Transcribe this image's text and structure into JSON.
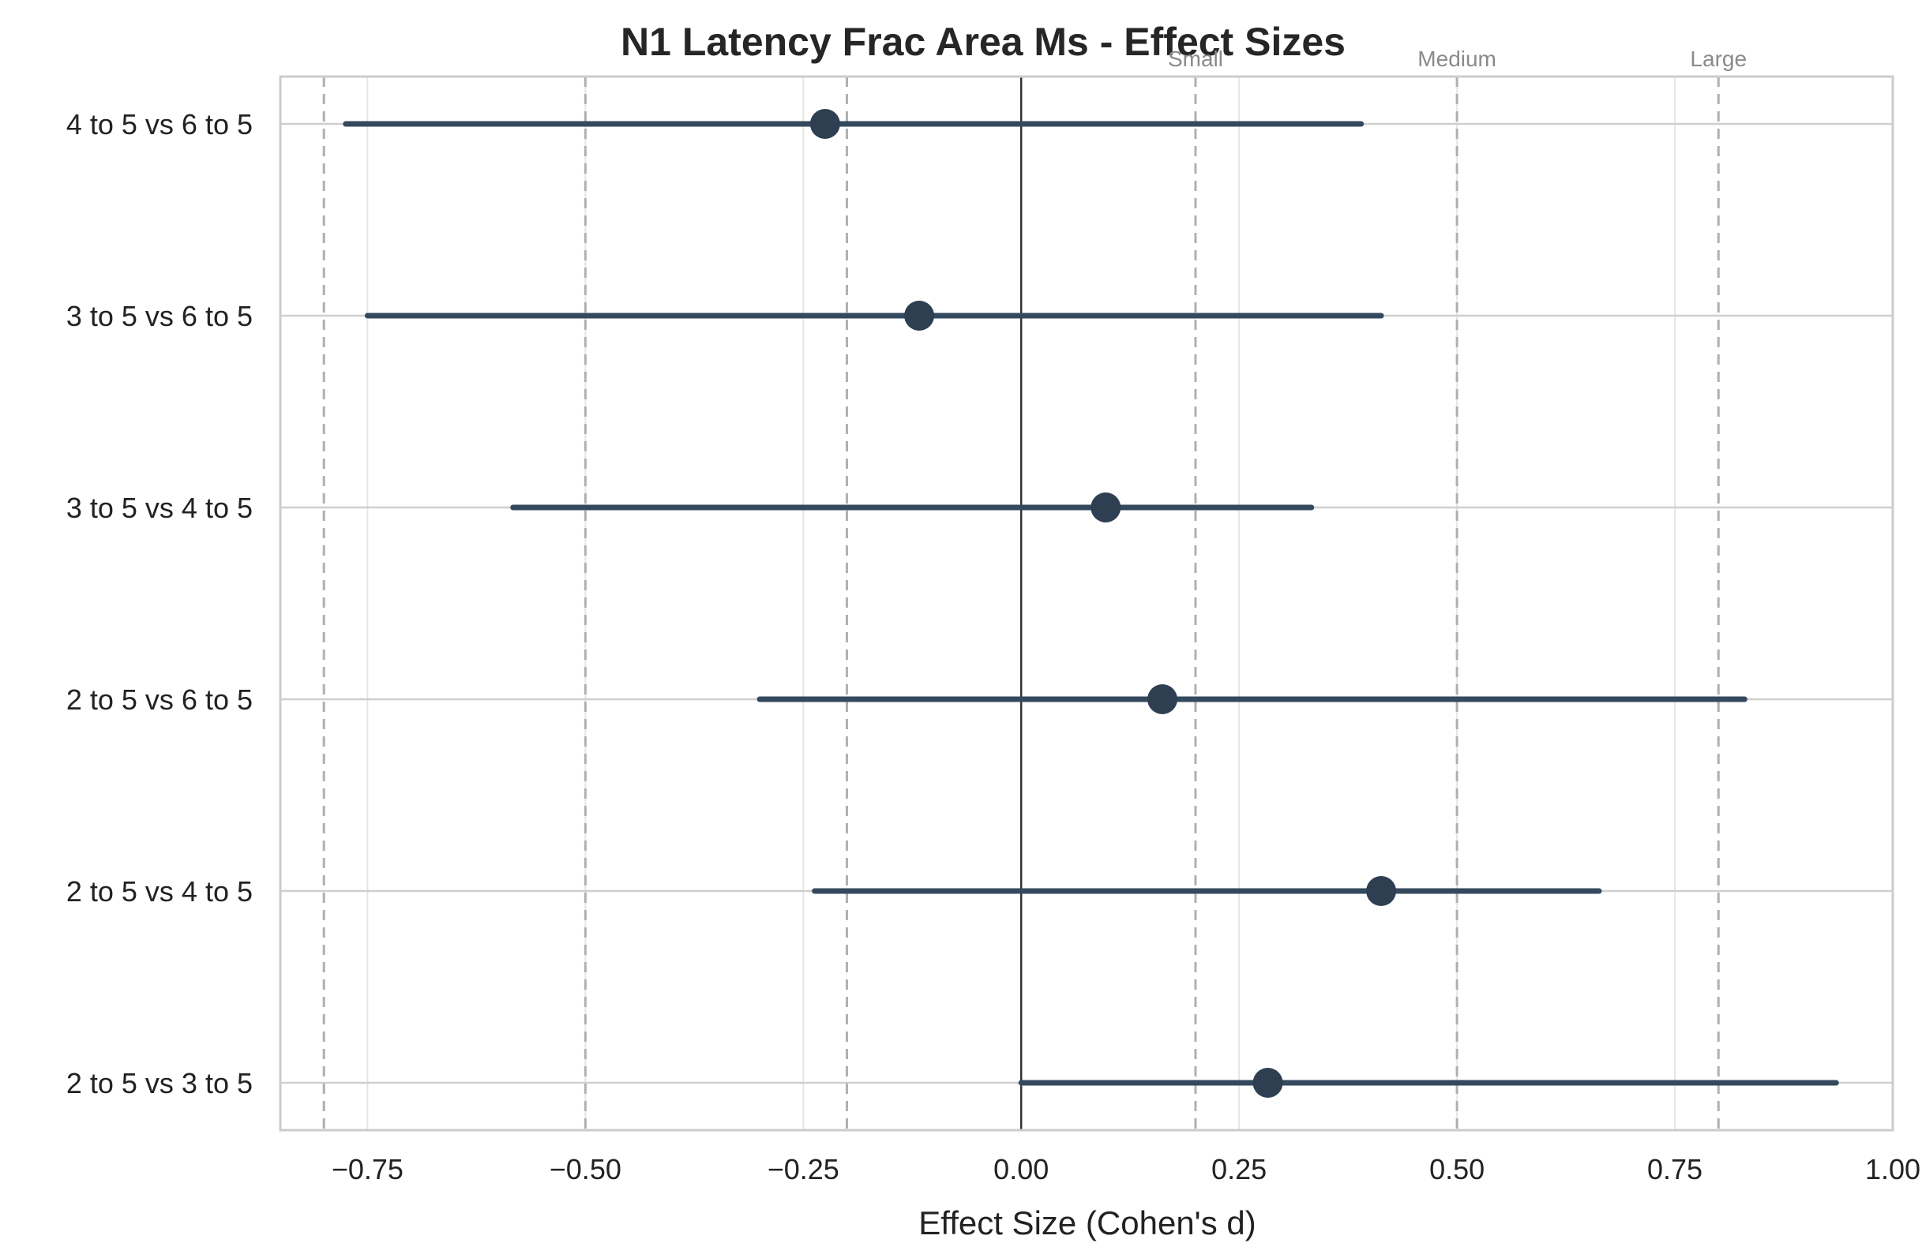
{
  "chart_data": {
    "type": "forest",
    "title": "N1 Latency Frac Area Ms - Effect Sizes",
    "xlabel": "Effect Size (Cohen's d)",
    "ylabel": "",
    "xlim": [
      -0.85,
      1.0
    ],
    "xticks": [
      -0.75,
      -0.5,
      -0.25,
      0.0,
      0.25,
      0.5,
      0.75,
      1.0
    ],
    "xtick_labels": [
      "−0.75",
      "−0.50",
      "−0.25",
      "0.00",
      "0.25",
      "0.50",
      "0.75",
      "1.00"
    ],
    "grid": true,
    "zero_line": 0.0,
    "reference_lines": [
      {
        "label": "Small",
        "values": [
          -0.2,
          0.2
        ]
      },
      {
        "label": "Medium",
        "values": [
          -0.5,
          0.5
        ]
      },
      {
        "label": "Large",
        "values": [
          -0.8,
          0.8
        ]
      }
    ],
    "comparisons": [
      {
        "label": "4 to 5 vs 6 to 5",
        "d": -0.225,
        "ci_low": -0.775,
        "ci_high": 0.39
      },
      {
        "label": "3 to 5 vs 6 to 5",
        "d": -0.117,
        "ci_low": -0.75,
        "ci_high": 0.413
      },
      {
        "label": "3 to 5 vs 4 to 5",
        "d": 0.097,
        "ci_low": -0.583,
        "ci_high": 0.333
      },
      {
        "label": "2 to 5 vs 6 to 5",
        "d": 0.162,
        "ci_low": -0.3,
        "ci_high": 0.83
      },
      {
        "label": "2 to 5 vs 4 to 5",
        "d": 0.413,
        "ci_low": -0.237,
        "ci_high": 0.663
      },
      {
        "label": "2 to 5 vs 3 to 5",
        "d": 0.283,
        "ci_low": 0.0,
        "ci_high": 0.935
      }
    ],
    "colors": {
      "point": "#2e3f52",
      "ci_line": "#34495e",
      "zero_line": "#333333",
      "reference_line": "#b0b0b0",
      "grid": "#e6e6e6",
      "frame": "#cccccc"
    }
  }
}
